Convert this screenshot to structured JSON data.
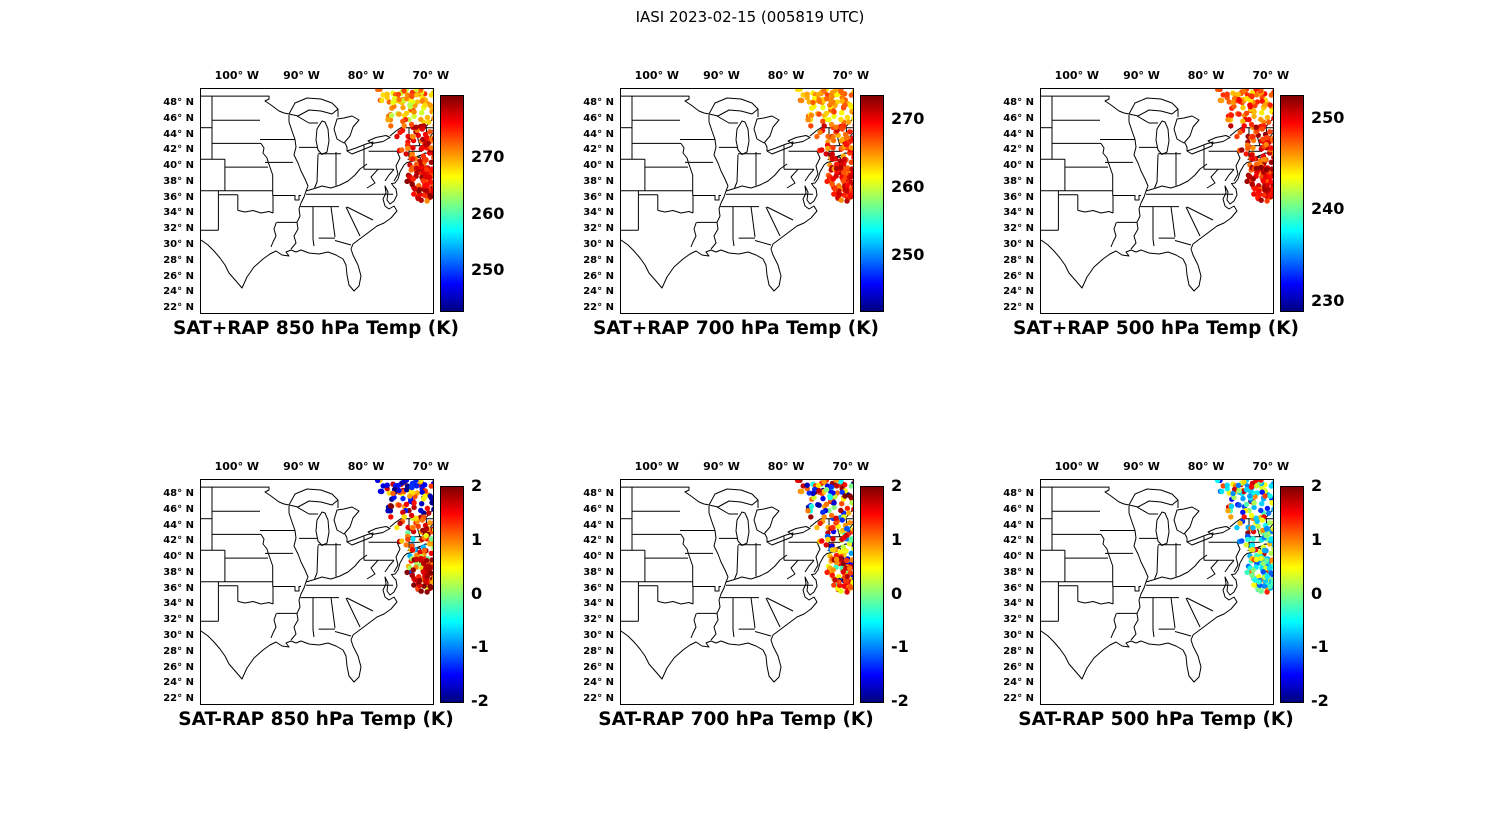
{
  "title": "IASI 2023-02-15 (005819 UTC)",
  "chart_data": {
    "type": "scatter",
    "figure_title": "IASI 2023-02-15 (005819 UTC)",
    "description": "Six map panels of IASI satellite retrieval swath over the northeastern United States: top row SAT+RAP absolute temperature, bottom row SAT-RAP temperature difference, at 850/700/500 hPa.",
    "colormap": "jet",
    "lon_range": [
      -105.7,
      -69.8
    ],
    "lat_range": [
      21.5,
      49.9
    ],
    "lon_ticks": {
      "values": [
        -100,
        -90,
        -80,
        -70
      ],
      "labels": [
        "100° W",
        "90° W",
        "80° W",
        "70° W"
      ]
    },
    "lat_ticks": {
      "values": [
        48,
        46,
        44,
        42,
        40,
        38,
        36,
        34,
        32,
        30,
        28,
        26,
        24,
        22
      ],
      "labels": [
        "48° N",
        "46° N",
        "44° N",
        "42° N",
        "40° N",
        "38° N",
        "36° N",
        "34° N",
        "32° N",
        "30° N",
        "28° N",
        "26° N",
        "24° N",
        "22° N"
      ]
    },
    "swath": {
      "seed": 7,
      "n_points": 240,
      "blob_points": 30,
      "note": "Satellite swath over New England / western Atlantic, wide near 49N tapering toward 38N near 70W, plus a dense cluster near 40-42N, 69-71W."
    },
    "panels": [
      {
        "id": "sat-plus-rap-850",
        "row": 0,
        "col": 0,
        "title": "SAT+RAP 850 hPa Temp (K)",
        "colorbar": {
          "min": 243,
          "max": 281,
          "tick_values": [
            270,
            260,
            250
          ],
          "tick_labels": [
            "270",
            "260",
            "250"
          ]
        },
        "seed": 11,
        "top_mix": [
          [
            0.5,
            264,
            272
          ],
          [
            0.5,
            268,
            276
          ]
        ],
        "main_mix": [
          [
            1.0,
            271,
            280
          ]
        ],
        "blob_range": [
          274,
          281
        ]
      },
      {
        "id": "sat-plus-rap-700",
        "row": 0,
        "col": 1,
        "title": "SAT+RAP 700 hPa Temp (K)",
        "colorbar": {
          "min": 242,
          "max": 273.5,
          "tick_values": [
            270,
            260,
            250
          ],
          "tick_labels": [
            "270",
            "260",
            "250"
          ]
        },
        "seed": 22,
        "top_mix": [
          [
            1.0,
            261,
            268
          ]
        ],
        "main_mix": [
          [
            1.0,
            264,
            272
          ]
        ],
        "blob_range": [
          266,
          272
        ]
      },
      {
        "id": "sat-plus-rap-500",
        "row": 0,
        "col": 2,
        "title": "SAT+RAP 500 hPa Temp (K)",
        "colorbar": {
          "min": 229,
          "max": 252.5,
          "tick_values": [
            250,
            240,
            230
          ],
          "tick_labels": [
            "250",
            "240",
            "230"
          ]
        },
        "seed": 33,
        "top_mix": [
          [
            1.0,
            244,
            250
          ]
        ],
        "main_mix": [
          [
            1.0,
            246,
            252
          ]
        ],
        "blob_range": [
          248,
          252.4
        ]
      },
      {
        "id": "sat-minus-rap-850",
        "row": 1,
        "col": 0,
        "title": "SAT-RAP 850 hPa Temp (K)",
        "colorbar": {
          "min": -2,
          "max": 2,
          "tick_values": [
            2,
            1,
            0,
            -1,
            -2
          ],
          "tick_labels": [
            "2",
            "1",
            "0",
            "-1",
            "-2"
          ]
        },
        "seed": 44,
        "top_mix": [
          [
            0.55,
            -2,
            -1.3
          ],
          [
            0.45,
            0.5,
            2
          ]
        ],
        "main_mix": [
          [
            0.7,
            0.6,
            2
          ],
          [
            0.2,
            -0.2,
            0.8
          ],
          [
            0.1,
            -1.2,
            -0.3
          ]
        ],
        "blob_range": [
          1.6,
          2
        ]
      },
      {
        "id": "sat-minus-rap-700",
        "row": 1,
        "col": 1,
        "title": "SAT-RAP 700 hPa Temp (K)",
        "colorbar": {
          "min": -2,
          "max": 2,
          "tick_values": [
            2,
            1,
            0,
            -1,
            -2
          ],
          "tick_labels": [
            "2",
            "1",
            "0",
            "-1",
            "-2"
          ]
        },
        "seed": 55,
        "top_mix": [
          [
            0.3,
            -2,
            -1.2
          ],
          [
            0.5,
            0.5,
            2
          ],
          [
            0.2,
            -0.5,
            0.5
          ]
        ],
        "main_mix": [
          [
            0.55,
            0.4,
            1.9
          ],
          [
            0.25,
            -0.3,
            0.6
          ],
          [
            0.2,
            -2,
            -0.8
          ]
        ],
        "blob_range": [
          0.8,
          2
        ]
      },
      {
        "id": "sat-minus-rap-500",
        "row": 1,
        "col": 2,
        "title": "SAT-RAP 500 hPa Temp (K)",
        "colorbar": {
          "min": -2,
          "max": 2,
          "tick_values": [
            2,
            1,
            0,
            -1,
            -2
          ],
          "tick_labels": [
            "2",
            "1",
            "0",
            "-1",
            "-2"
          ]
        },
        "seed": 66,
        "top_mix": [
          [
            0.45,
            -1.5,
            -0.4
          ],
          [
            0.35,
            -0.3,
            0.8
          ],
          [
            0.2,
            0.8,
            1.8
          ]
        ],
        "main_mix": [
          [
            0.4,
            -1.3,
            -0.2
          ],
          [
            0.3,
            -0.1,
            0.9
          ],
          [
            0.3,
            0.7,
            1.9
          ]
        ],
        "blob_range": [
          -1.2,
          0.5
        ]
      }
    ]
  }
}
